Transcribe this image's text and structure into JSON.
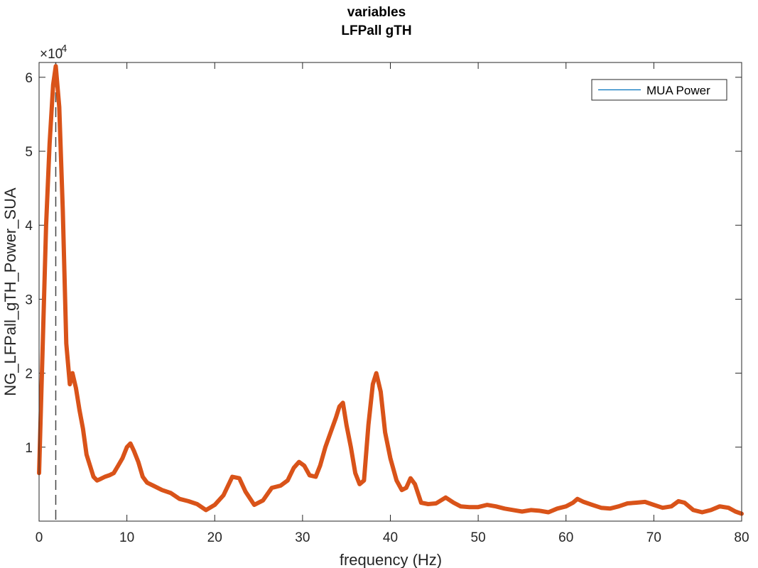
{
  "chart_data": {
    "type": "line",
    "title": "variables",
    "subtitle": "LFPall gTH",
    "xlabel": "frequency (Hz)",
    "ylabel": "NG_LFPall_gTH_Power_SUA",
    "xlim": [
      0,
      80
    ],
    "ylim": [
      0,
      6.2
    ],
    "y_exponent_label": "×10",
    "y_exponent_value": "-4",
    "xticks": [
      "0",
      "10",
      "20",
      "30",
      "40",
      "50",
      "60",
      "70",
      "80"
    ],
    "yticks": [
      "1",
      "2",
      "3",
      "4",
      "5",
      "6"
    ],
    "grid": false,
    "legend": {
      "entries": [
        "MUA Power"
      ],
      "position": "top-right"
    },
    "reference_line": {
      "x": 1.9,
      "style": "dashed",
      "color": "#444444"
    },
    "series": [
      {
        "name": "MUA Power",
        "color": "#D95319",
        "x": [
          0,
          0.4,
          0.8,
          1.2,
          1.6,
          1.9,
          2.3,
          2.7,
          3.1,
          3.5,
          3.8,
          4.2,
          4.6,
          5.0,
          5.4,
          5.8,
          6.2,
          6.6,
          7.0,
          7.5,
          8.0,
          8.5,
          9.0,
          9.5,
          10.0,
          10.4,
          10.8,
          11.3,
          11.8,
          12.3,
          13.0,
          14.0,
          15.0,
          16.0,
          17.0,
          18.0,
          19.0,
          20.0,
          21.0,
          22.0,
          22.8,
          23.5,
          24.5,
          25.5,
          26.5,
          27.5,
          28.3,
          29.0,
          29.6,
          30.2,
          30.8,
          31.5,
          32.0,
          32.6,
          33.2,
          33.8,
          34.2,
          34.6,
          35.0,
          35.5,
          36.0,
          36.5,
          37.0,
          37.5,
          38.0,
          38.4,
          38.9,
          39.4,
          40.0,
          40.7,
          41.3,
          41.8,
          42.3,
          42.8,
          43.5,
          44.3,
          45.2,
          46.3,
          47.2,
          48.0,
          49.0,
          50.0,
          51.0,
          52.0,
          53.0,
          54.0,
          55.0,
          56.0,
          57.0,
          58.0,
          59.0,
          60.0,
          60.8,
          61.3,
          62.0,
          63.0,
          64.0,
          65.0,
          66.0,
          67.0,
          68.0,
          69.0,
          70.0,
          71.0,
          72.0,
          72.8,
          73.5,
          74.5,
          75.5,
          76.5,
          77.5,
          78.5,
          79.3,
          80.0
        ],
        "values": [
          0.65,
          2.3,
          4.0,
          5.1,
          5.9,
          6.15,
          5.6,
          4.2,
          2.4,
          1.85,
          2.0,
          1.8,
          1.5,
          1.25,
          0.9,
          0.75,
          0.6,
          0.55,
          0.57,
          0.6,
          0.62,
          0.65,
          0.75,
          0.85,
          1.0,
          1.05,
          0.95,
          0.8,
          0.6,
          0.52,
          0.48,
          0.42,
          0.38,
          0.3,
          0.27,
          0.23,
          0.15,
          0.22,
          0.35,
          0.6,
          0.58,
          0.4,
          0.22,
          0.28,
          0.45,
          0.48,
          0.55,
          0.72,
          0.8,
          0.75,
          0.62,
          0.6,
          0.75,
          1.0,
          1.2,
          1.4,
          1.55,
          1.6,
          1.3,
          1.0,
          0.65,
          0.5,
          0.55,
          1.3,
          1.85,
          2.0,
          1.75,
          1.2,
          0.85,
          0.55,
          0.42,
          0.45,
          0.58,
          0.5,
          0.25,
          0.23,
          0.24,
          0.32,
          0.25,
          0.2,
          0.19,
          0.19,
          0.22,
          0.2,
          0.17,
          0.15,
          0.13,
          0.15,
          0.14,
          0.12,
          0.17,
          0.2,
          0.25,
          0.3,
          0.26,
          0.22,
          0.18,
          0.17,
          0.2,
          0.24,
          0.25,
          0.26,
          0.22,
          0.18,
          0.2,
          0.27,
          0.25,
          0.15,
          0.12,
          0.15,
          0.2,
          0.18,
          0.13,
          0.1
        ]
      }
    ]
  }
}
